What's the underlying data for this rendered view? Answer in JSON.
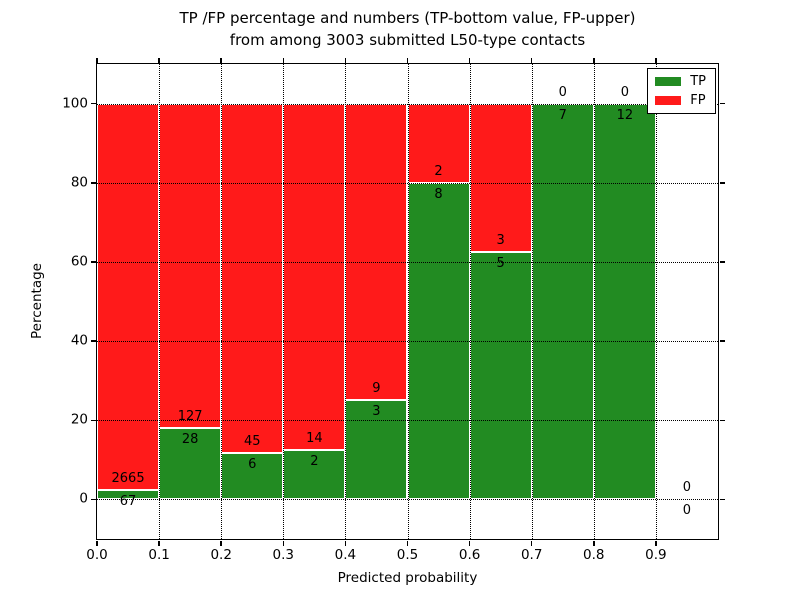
{
  "title": {
    "line1": "TP /FP percentage and numbers (TP-bottom value, FP-upper)",
    "line2": "from among 3003 submitted L50-type contacts"
  },
  "chart_data": {
    "type": "bar",
    "stacked": true,
    "note": "per-bin TP/FP counts normalized to 100% (percentage stacked bars); count labels drawn at TP/FP boundary, TP below, FP above",
    "title": "TP /FP percentage and numbers (TP-bottom value, FP-upper) from among 3003 submitted L50-type contacts",
    "xlabel": "Predicted probability",
    "ylabel": "Percentage",
    "xlim": [
      0.0,
      1.0
    ],
    "ylim": [
      -10,
      110
    ],
    "grid": "dotted",
    "legend_position": "upper right",
    "x_ticks": [
      {
        "value": 0.0,
        "label": "0.0"
      },
      {
        "value": 0.1,
        "label": "0.1"
      },
      {
        "value": 0.2,
        "label": "0.2"
      },
      {
        "value": 0.3,
        "label": "0.3"
      },
      {
        "value": 0.4,
        "label": "0.4"
      },
      {
        "value": 0.5,
        "label": "0.5"
      },
      {
        "value": 0.6,
        "label": "0.6"
      },
      {
        "value": 0.7,
        "label": "0.7"
      },
      {
        "value": 0.8,
        "label": "0.8"
      },
      {
        "value": 0.9,
        "label": "0.9"
      }
    ],
    "y_ticks": [
      {
        "value": 0,
        "label": "0"
      },
      {
        "value": 20,
        "label": "20"
      },
      {
        "value": 40,
        "label": "40"
      },
      {
        "value": 60,
        "label": "60"
      },
      {
        "value": 80,
        "label": "80"
      },
      {
        "value": 100,
        "label": "100"
      }
    ],
    "bin_width": 0.1,
    "series": [
      {
        "name": "TP",
        "color": "#228b22",
        "counts": [
          67,
          28,
          6,
          2,
          3,
          8,
          5,
          7,
          12,
          0
        ]
      },
      {
        "name": "FP",
        "color": "#ff1a1a",
        "counts": [
          2665,
          127,
          45,
          14,
          9,
          2,
          3,
          0,
          0,
          0
        ]
      }
    ]
  }
}
